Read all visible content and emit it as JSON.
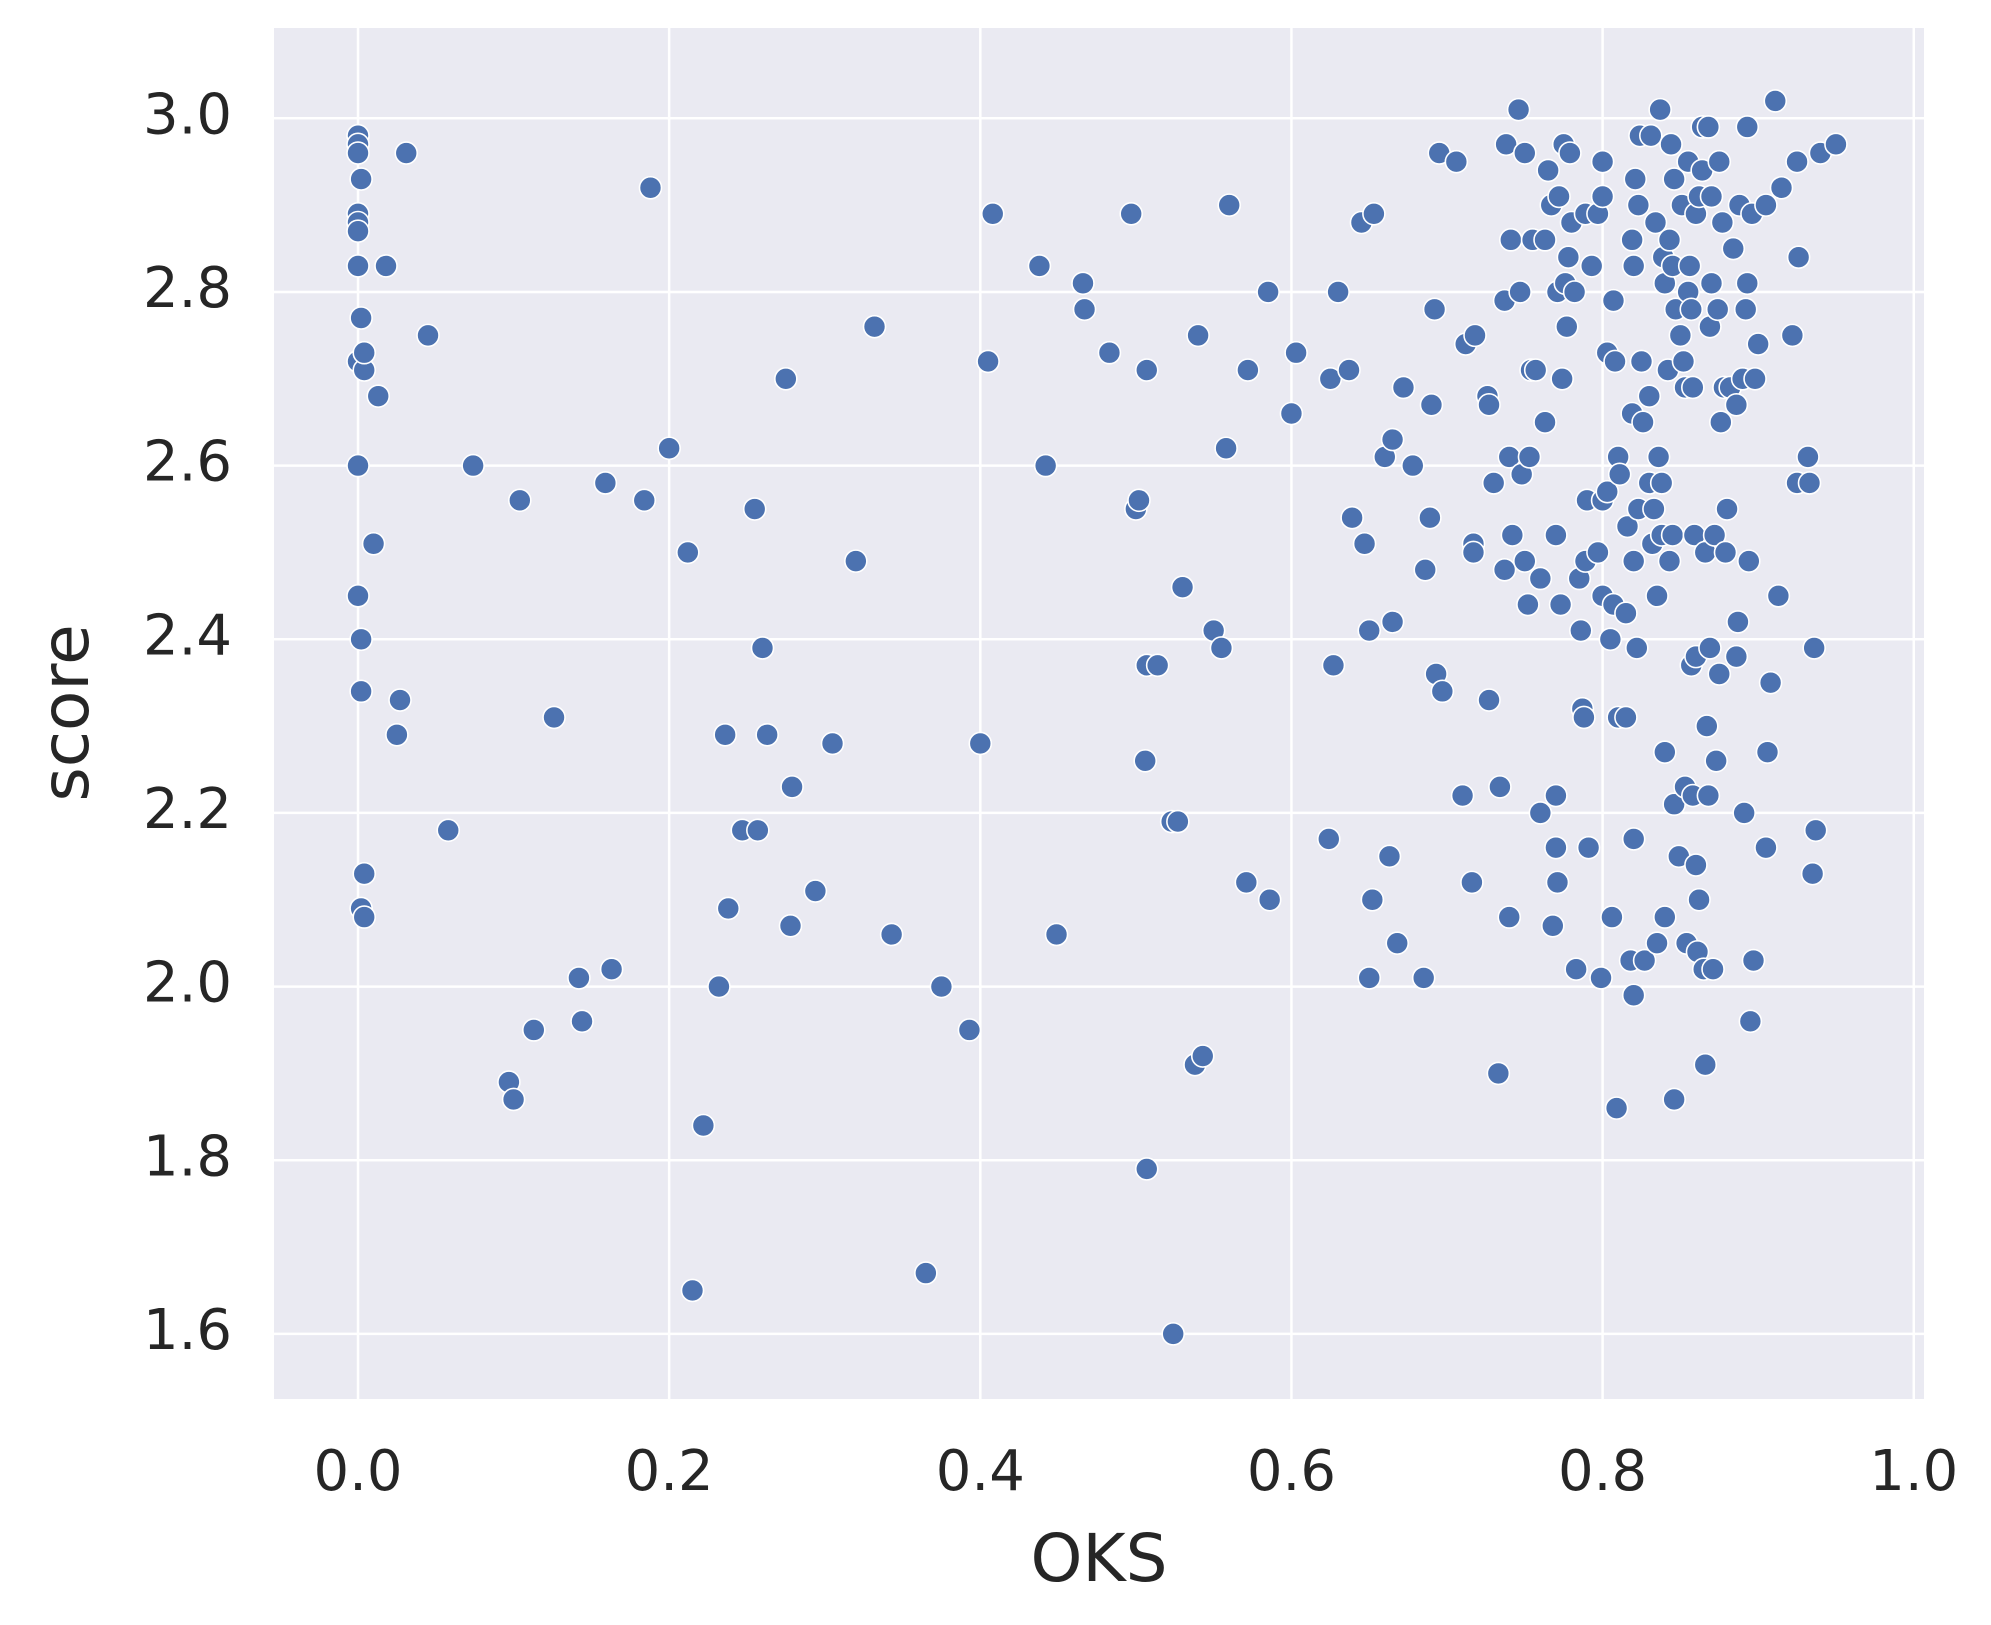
{
  "chart_data": {
    "type": "scatter",
    "xlabel": "OKS",
    "ylabel": "score",
    "color": "#4c72b0",
    "grid": true,
    "xlim": [
      -0.054,
      1.0066
    ],
    "ylim": [
      1.525,
      3.104
    ],
    "xticks": [
      {
        "value": 0,
        "label": "0.0"
      },
      0.2,
      0.4,
      0.6,
      0.8,
      {
        "value": 1,
        "label": "1.0"
      }
    ],
    "yticks": [
      1.6,
      1.8,
      {
        "value": 2,
        "label": "2.0"
      },
      2.2,
      2.4,
      2.6,
      2.8,
      {
        "value": 3,
        "label": "3.0"
      }
    ],
    "x": [
      0,
      0,
      0,
      0.002,
      0,
      0,
      0,
      0,
      0.002,
      0,
      0.004,
      0.004,
      0,
      0,
      0.002,
      0.002,
      0.004,
      0.002,
      0.004,
      0.018,
      0.031,
      0.013,
      0.01,
      0.045,
      0.027,
      0.025,
      0.058,
      0.074,
      0.104,
      0.097,
      0.1,
      0.113,
      0.126,
      0.142,
      0.144,
      0.159,
      0.163,
      0.184,
      0.188,
      0.2,
      0.212,
      0.215,
      0.222,
      0.232,
      0.236,
      0.238,
      0.247,
      0.255,
      0.257,
      0.26,
      0.263,
      0.275,
      0.278,
      0.279,
      0.294,
      0.305,
      0.32,
      0.332,
      0.343,
      0.365,
      0.375,
      0.393,
      0.4,
      0.405,
      0.408,
      0.438,
      0.442,
      0.449,
      0.466,
      0.467,
      0.483,
      0.497,
      0.5,
      0.502,
      0.506,
      0.507,
      0.507,
      0.507,
      0.514,
      0.523,
      0.524,
      0.527,
      0.53,
      0.538,
      0.543,
      0.54,
      0.55,
      0.555,
      0.558,
      0.56,
      0.571,
      0.572,
      0.585,
      0.586,
      0.6,
      0.603,
      0.624,
      0.625,
      0.627,
      0.63,
      0.637,
      0.639,
      0.647,
      0.645,
      0.65,
      0.65,
      0.652,
      0.653,
      0.66,
      0.663,
      0.665,
      0.665,
      0.668,
      0.672,
      0.678,
      0.685,
      0.686,
      0.689,
      0.69,
      0.692,
      0.693,
      0.695,
      0.697,
      0.706,
      0.71,
      0.712,
      0.716,
      0.717,
      0.717,
      0.718,
      0.726,
      0.727,
      0.727,
      0.73,
      0.733,
      0.734,
      0.737,
      0.737,
      0.738,
      0.74,
      0.74,
      0.741,
      0.742,
      0.746,
      0.747,
      0.748,
      0.75,
      0.75,
      0.752,
      0.753,
      0.754,
      0.755,
      0.757,
      0.76,
      0.76,
      0.763,
      0.763,
      0.765,
      0.767,
      0.768,
      0.77,
      0.77,
      0.77,
      0.771,
      0.771,
      0.772,
      0.773,
      0.774,
      0.775,
      0.776,
      0.777,
      0.778,
      0.779,
      0.78,
      0.782,
      0.783,
      0.785,
      0.786,
      0.787,
      0.788,
      0.789,
      0.789,
      0.79,
      0.791,
      0.793,
      0.797,
      0.797,
      0.799,
      0.8,
      0.8,
      0.8,
      0.8,
      0.803,
      0.803,
      0.805,
      0.806,
      0.807,
      0.807,
      0.808,
      0.809,
      0.81,
      0.81,
      0.811,
      0.815,
      0.815,
      0.816,
      0.818,
      0.819,
      0.819,
      0.82,
      0.82,
      0.82,
      0.82,
      0.821,
      0.822,
      0.823,
      0.823,
      0.824,
      0.825,
      0.826,
      0.827,
      0.83,
      0.83,
      0.831,
      0.832,
      0.833,
      0.834,
      0.835,
      0.835,
      0.836,
      0.837,
      0.838,
      0.838,
      0.839,
      0.84,
      0.84,
      0.84,
      0.842,
      0.843,
      0.843,
      0.844,
      0.845,
      0.845,
      0.846,
      0.846,
      0.846,
      0.847,
      0.849,
      0.85,
      0.851,
      0.852,
      0.853,
      0.853,
      0.854,
      0.855,
      0.855,
      0.856,
      0.857,
      0.857,
      0.858,
      0.858,
      0.859,
      0.86,
      0.86,
      0.86,
      0.861,
      0.862,
      0.862,
      0.864,
      0.864,
      0.865,
      0.866,
      0.866,
      0.867,
      0.868,
      0.868,
      0.869,
      0.869,
      0.87,
      0.87,
      0.871,
      0.872,
      0.873,
      0.874,
      0.875,
      0.875,
      0.876,
      0.877,
      0.878,
      0.879,
      0.88,
      0.882,
      0.884,
      0.886,
      0.886,
      0.887,
      0.888,
      0.89,
      0.891,
      0.892,
      0.893,
      0.893,
      0.894,
      0.895,
      0.896,
      0.897,
      0.898,
      0.9,
      0.905,
      0.905,
      0.906,
      0.908,
      0.911,
      0.913,
      0.915,
      0.922,
      0.925,
      0.925,
      0.926,
      0.932,
      0.933,
      0.935,
      0.936,
      0.937,
      0.94,
      0.95
    ],
    "y": [
      2.98,
      2.97,
      2.96,
      2.93,
      2.89,
      2.88,
      2.87,
      2.83,
      2.77,
      2.72,
      2.71,
      2.73,
      2.6,
      2.45,
      2.4,
      2.34,
      2.13,
      2.09,
      2.08,
      2.83,
      2.96,
      2.68,
      2.51,
      2.75,
      2.33,
      2.29,
      2.18,
      2.6,
      2.56,
      1.89,
      1.87,
      1.95,
      2.31,
      2.01,
      1.96,
      2.58,
      2.02,
      2.56,
      2.92,
      2.62,
      2.5,
      1.65,
      1.84,
      2.0,
      2.29,
      2.09,
      2.18,
      2.55,
      2.18,
      2.39,
      2.29,
      2.7,
      2.07,
      2.23,
      2.11,
      2.28,
      2.49,
      2.76,
      2.06,
      1.67,
      2.0,
      1.95,
      2.28,
      2.72,
      2.89,
      2.83,
      2.6,
      2.06,
      2.81,
      2.78,
      2.73,
      2.89,
      2.55,
      2.56,
      2.26,
      2.71,
      1.79,
      2.37,
      2.37,
      2.19,
      1.6,
      2.19,
      2.46,
      1.91,
      1.92,
      2.75,
      2.41,
      2.39,
      2.62,
      2.9,
      2.12,
      2.71,
      2.8,
      2.1,
      2.66,
      2.73,
      2.17,
      2.7,
      2.37,
      2.8,
      2.71,
      2.54,
      2.51,
      2.88,
      2.41,
      2.01,
      2.1,
      2.89,
      2.61,
      2.15,
      2.42,
      2.63,
      2.05,
      2.69,
      2.6,
      2.01,
      2.48,
      2.54,
      2.67,
      2.78,
      2.36,
      2.96,
      2.34,
      2.95,
      2.22,
      2.74,
      2.12,
      2.51,
      2.5,
      2.75,
      2.68,
      2.67,
      2.33,
      2.58,
      1.9,
      2.23,
      2.48,
      2.79,
      2.97,
      2.08,
      2.61,
      2.86,
      2.52,
      3.01,
      2.8,
      2.59,
      2.49,
      2.96,
      2.44,
      2.61,
      2.71,
      2.86,
      2.71,
      2.47,
      2.2,
      2.86,
      2.65,
      2.94,
      2.9,
      2.07,
      2.52,
      2.16,
      2.22,
      2.12,
      2.8,
      2.91,
      2.44,
      2.7,
      2.97,
      2.81,
      2.76,
      2.84,
      2.96,
      2.88,
      2.8,
      2.02,
      2.47,
      2.41,
      2.32,
      2.31,
      2.89,
      2.49,
      2.56,
      2.16,
      2.83,
      2.89,
      2.5,
      2.01,
      2.45,
      2.56,
      2.95,
      2.91,
      2.57,
      2.73,
      2.4,
      2.08,
      2.44,
      2.79,
      2.72,
      1.86,
      2.31,
      2.61,
      2.59,
      2.43,
      2.31,
      2.53,
      2.03,
      2.66,
      2.86,
      2.49,
      2.17,
      1.99,
      2.83,
      2.93,
      2.39,
      2.9,
      2.55,
      2.98,
      2.72,
      2.65,
      2.03,
      2.58,
      2.68,
      2.98,
      2.51,
      2.55,
      2.88,
      2.05,
      2.45,
      2.61,
      3.01,
      2.58,
      2.52,
      2.84,
      2.27,
      2.08,
      2.81,
      2.71,
      2.86,
      2.49,
      2.97,
      2.83,
      2.52,
      2.93,
      2.21,
      1.87,
      2.78,
      2.15,
      2.75,
      2.9,
      2.72,
      2.23,
      2.69,
      2.05,
      2.95,
      2.8,
      2.83,
      2.78,
      2.37,
      2.69,
      2.22,
      2.52,
      2.89,
      2.38,
      2.14,
      2.04,
      2.91,
      2.1,
      2.94,
      2.99,
      2.02,
      1.91,
      2.5,
      2.3,
      2.22,
      2.99,
      2.76,
      2.39,
      2.81,
      2.91,
      2.02,
      2.52,
      2.26,
      2.78,
      2.36,
      2.95,
      2.65,
      2.88,
      2.69,
      2.5,
      2.55,
      2.69,
      2.85,
      2.38,
      2.67,
      2.42,
      2.9,
      2.7,
      2.2,
      2.78,
      2.81,
      2.99,
      2.49,
      1.96,
      2.89,
      2.03,
      2.7,
      2.74,
      2.9,
      2.16,
      2.27,
      2.35,
      3.02,
      2.45,
      2.92,
      2.75,
      2.95,
      2.58,
      2.84,
      2.61,
      2.58,
      2.13,
      2.39,
      2.18,
      2.96,
      2.97
    ]
  }
}
